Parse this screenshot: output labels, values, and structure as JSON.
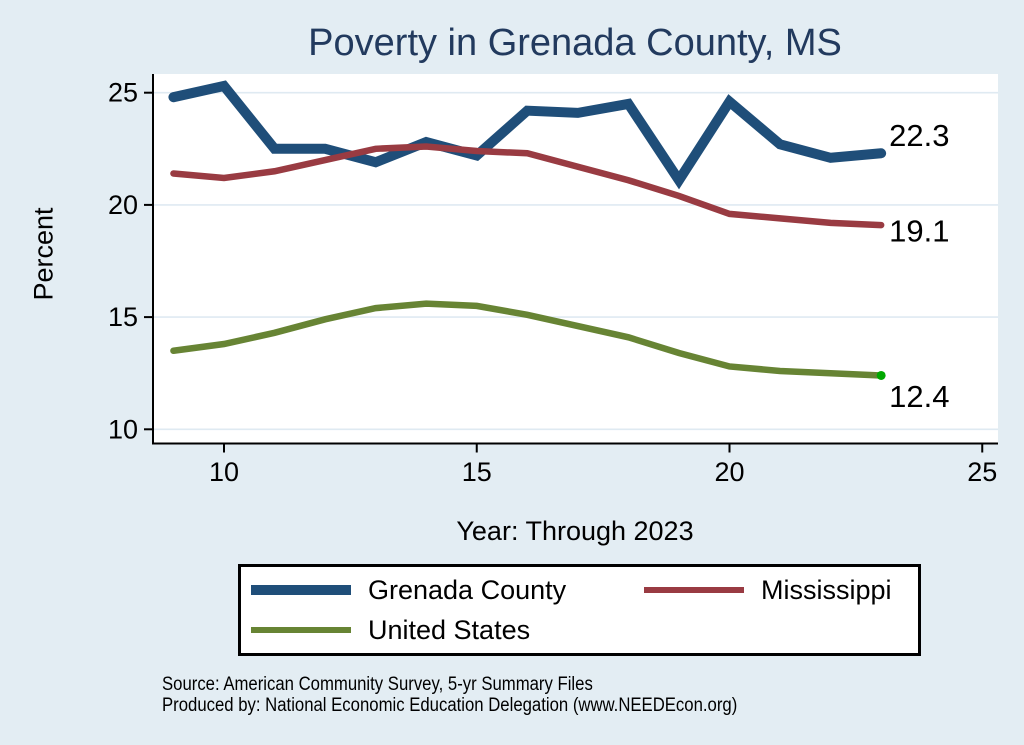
{
  "page": {
    "background": "#e3edf3"
  },
  "header": {
    "title": "Poverty in Grenada County, MS",
    "title_color": "#223a5e"
  },
  "chart_data": {
    "type": "line",
    "title": "Poverty in Grenada County, MS",
    "xlabel": "Year: Through 2023",
    "ylabel": "Percent",
    "x": [
      9,
      10,
      11,
      12,
      13,
      14,
      15,
      16,
      17,
      18,
      19,
      20,
      21,
      22,
      23
    ],
    "x_years": [
      2009,
      2010,
      2011,
      2012,
      2013,
      2014,
      2015,
      2016,
      2017,
      2018,
      2019,
      2020,
      2021,
      2022,
      2023
    ],
    "xticks": [
      10,
      15,
      20,
      25
    ],
    "yticks": [
      10,
      15,
      20,
      25
    ],
    "xlim": [
      8.6,
      25.3
    ],
    "ylim": [
      9.3,
      25.8
    ],
    "grid": "horizontal",
    "grid_color": "#dfeaf2",
    "legend_position": "bottom",
    "series": [
      {
        "name": "Grenada County",
        "color": "#1f4e79",
        "line_width": 10,
        "end_label": "22.3",
        "values": [
          24.8,
          25.3,
          22.5,
          22.5,
          21.9,
          22.8,
          22.2,
          24.2,
          24.1,
          24.5,
          21.1,
          24.6,
          22.7,
          22.1,
          22.3
        ]
      },
      {
        "name": "Mississippi",
        "color": "#993b42",
        "line_width": 6.5,
        "end_label": "19.1",
        "values": [
          21.4,
          21.2,
          21.5,
          22.0,
          22.5,
          22.6,
          22.4,
          22.3,
          21.7,
          21.1,
          20.4,
          19.6,
          19.4,
          19.2,
          19.1
        ]
      },
      {
        "name": "United States",
        "color": "#678434",
        "line_width": 6.5,
        "end_label": "12.4",
        "end_dot_color": "#00a800",
        "values": [
          13.5,
          13.8,
          14.3,
          14.9,
          15.4,
          15.6,
          15.5,
          15.1,
          14.6,
          14.1,
          13.4,
          12.8,
          12.6,
          12.5,
          12.4
        ]
      }
    ]
  },
  "footer": {
    "source_line1": "Source: American Community Survey, 5-yr Summary Files",
    "source_line2": "Produced by: National Economic Education Delegation (www.NEEDEcon.org)"
  }
}
